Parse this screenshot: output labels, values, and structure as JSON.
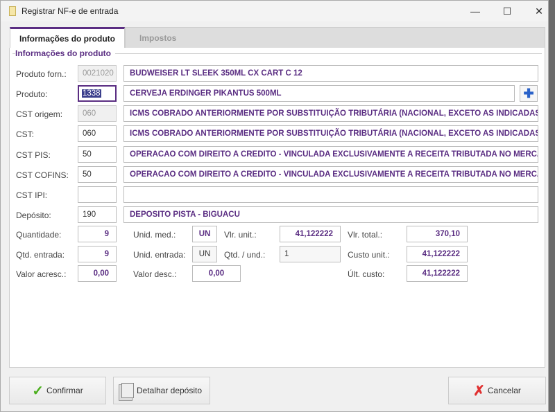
{
  "window": {
    "title": "Registrar NF-e de entrada",
    "minimize": "—",
    "maximize": "☐",
    "close": "✕"
  },
  "tabs": [
    {
      "label": "Informações do produto"
    },
    {
      "label": "Impostos"
    }
  ],
  "section": {
    "title": "Informações do produto"
  },
  "rows": [
    {
      "label": "Produto forn.:",
      "code": "0021020",
      "desc": "BUDWEISER LT SLEEK 350ML CX CART C 12"
    },
    {
      "label": "Produto:",
      "code": "1338",
      "desc": "CERVEJA ERDINGER PIKANTUS 500ML"
    },
    {
      "label": "CST origem:",
      "code": "060",
      "desc": "ICMS COBRADO ANTERIORMENTE POR SUBSTITUIÇÃO TRIBUTÁRIA (NACIONAL, EXCETO AS INDICADAS NO..."
    },
    {
      "label": "CST:",
      "code": "060",
      "desc": "ICMS COBRADO ANTERIORMENTE POR SUBSTITUIÇÃO TRIBUTÁRIA (NACIONAL, EXCETO AS INDICADAS NO..."
    },
    {
      "label": "CST PIS:",
      "code": "50",
      "desc": "OPERACAO COM DIREITO A CREDITO - VINCULADA EXCLUSIVAMENTE A RECEITA TRIBUTADA NO MERCADO I..."
    },
    {
      "label": "CST COFINS:",
      "code": "50",
      "desc": "OPERACAO COM DIREITO A CREDITO - VINCULADA EXCLUSIVAMENTE A RECEITA TRIBUTADA NO MERCADO I..."
    },
    {
      "label": "CST IPI:",
      "code": "",
      "desc": ""
    },
    {
      "label": "Depósito:",
      "code": "190",
      "desc": "DEPOSITO PISTA - BIGUACU"
    }
  ],
  "add_icon": "plus-icon",
  "qty": {
    "quantidade": {
      "label": "Quantidade:",
      "value": "9"
    },
    "unid_med": {
      "label": "Unid. med.:",
      "value": "UN"
    },
    "vlr_unit": {
      "label": "Vlr. unit.:",
      "value": "41,122222"
    },
    "vlr_total": {
      "label": "Vlr. total.:",
      "value": "370,10"
    },
    "qtd_entrada": {
      "label": "Qtd. entrada:",
      "value": "9"
    },
    "unid_entrada": {
      "label": "Unid. entrada:",
      "value": "UN"
    },
    "qtd_und": {
      "label": "Qtd. / und.:",
      "value": "1"
    },
    "custo_unit": {
      "label": "Custo unit.:",
      "value": "41,122222"
    },
    "valor_acresc": {
      "label": "Valor acresc.:",
      "value": "0,00"
    },
    "valor_desc": {
      "label": "Valor desc.:",
      "value": "0,00"
    },
    "ult_custo": {
      "label": "Últ. custo:",
      "value": "41,122222"
    }
  },
  "buttons": {
    "confirm": "Confirmar",
    "detail": "Detalhar depósito",
    "cancel": "Cancelar"
  },
  "colors": {
    "accent": "#5a2d82"
  }
}
